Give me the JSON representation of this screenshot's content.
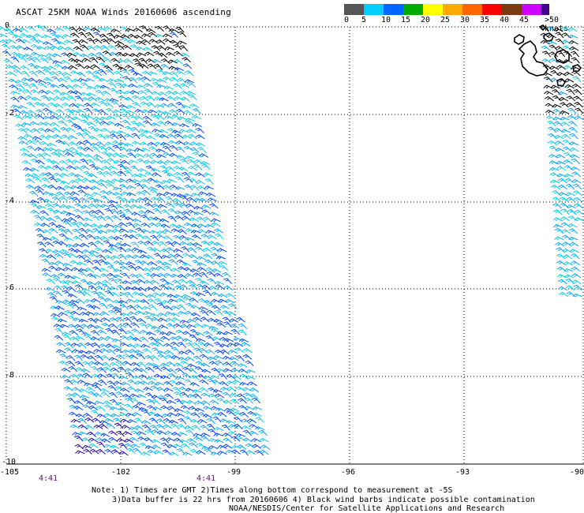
{
  "title": "ASCAT 25KM NOAA Winds 20160606 ascending",
  "legend": {
    "colors": [
      "#555555",
      "#00ccff",
      "#0066ff",
      "#00aa00",
      "#ffff00",
      "#ffaa00",
      "#ff6600",
      "#ff0000",
      "#7a3a10",
      "#ff00ff",
      "#9900cc",
      "#440088"
    ],
    "ticks": [
      "0",
      "5",
      "10",
      "15",
      "20",
      "25",
      "30",
      "35",
      "40",
      "45"
    ],
    "overflow_label": ">50 knots"
  },
  "map": {
    "lat_labels": [
      "0",
      "-2",
      "-4",
      "-6",
      "-8",
      "-10"
    ],
    "lon_labels": [
      "-105",
      "-102",
      "-99",
      "-96",
      "-93",
      "-90"
    ],
    "time_labels": [
      "4:41",
      "4:41"
    ]
  },
  "notes": {
    "line1": "Note: 1) Times are GMT 2)Times along bottom correspond to measurement at -5S",
    "line2": "3)Data buffer is 22 hrs from 20160606 4) Black wind barbs indicate possible contamination",
    "line3": "NOAA/NESDIS/Center for Satellite Applications and Research"
  },
  "barb_colors": {
    "light": "#00ccee",
    "medium": "#00a6ff",
    "dark": "#0044ff",
    "deep": "#2200aa",
    "contaminated": "#000000"
  }
}
